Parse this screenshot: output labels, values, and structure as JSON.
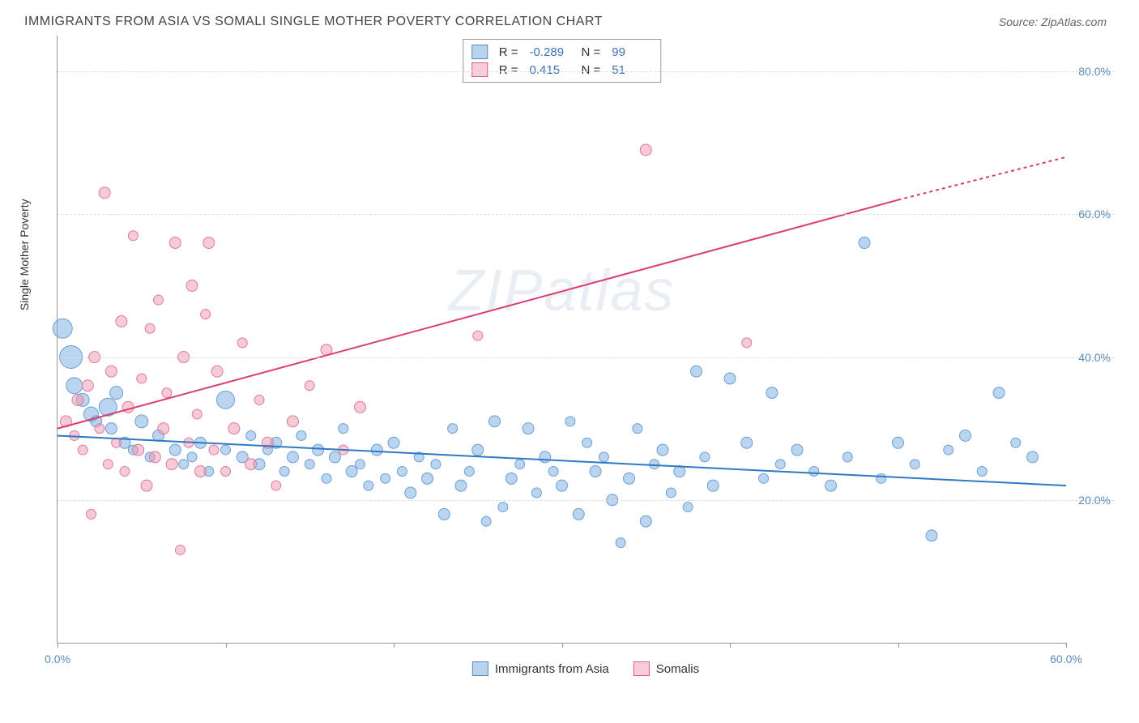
{
  "title": "IMMIGRANTS FROM ASIA VS SOMALI SINGLE MOTHER POVERTY CORRELATION CHART",
  "source": "Source: ZipAtlas.com",
  "watermark": "ZIPatlas",
  "ylabel": "Single Mother Poverty",
  "chart": {
    "type": "scatter",
    "xlim": [
      0,
      60
    ],
    "ylim": [
      0,
      85
    ],
    "xtick_positions": [
      0,
      10,
      20,
      30,
      40,
      50,
      60
    ],
    "xtick_labels": [
      "0.0%",
      "",
      "",
      "",
      "",
      "",
      "60.0%"
    ],
    "ytick_positions": [
      20,
      40,
      60,
      80
    ],
    "ytick_labels": [
      "20.0%",
      "40.0%",
      "60.0%",
      "80.0%"
    ],
    "grid_color": "#dddddd",
    "axis_color": "#999999",
    "background_color": "#ffffff",
    "series": [
      {
        "name": "Immigrants from Asia",
        "color_fill": "rgba(120,170,225,0.5)",
        "color_stroke": "#6a9fd4",
        "swatch_fill": "#b9d3ef",
        "swatch_stroke": "#5b8db8",
        "R": "-0.289",
        "N": "99",
        "trend": {
          "x1": 0,
          "y1": 29,
          "x2": 60,
          "y2": 22,
          "color": "#2f79c4",
          "width": 2
        },
        "points": [
          {
            "x": 0.3,
            "y": 44,
            "r": 12
          },
          {
            "x": 0.8,
            "y": 40,
            "r": 14
          },
          {
            "x": 1,
            "y": 36,
            "r": 10
          },
          {
            "x": 1.5,
            "y": 34,
            "r": 8
          },
          {
            "x": 2,
            "y": 32,
            "r": 9
          },
          {
            "x": 2.3,
            "y": 31,
            "r": 7
          },
          {
            "x": 3,
            "y": 33,
            "r": 11
          },
          {
            "x": 3.2,
            "y": 30,
            "r": 7
          },
          {
            "x": 3.5,
            "y": 35,
            "r": 8
          },
          {
            "x": 4,
            "y": 28,
            "r": 7
          },
          {
            "x": 4.5,
            "y": 27,
            "r": 6
          },
          {
            "x": 5,
            "y": 31,
            "r": 8
          },
          {
            "x": 5.5,
            "y": 26,
            "r": 6
          },
          {
            "x": 6,
            "y": 29,
            "r": 7
          },
          {
            "x": 7,
            "y": 27,
            "r": 7
          },
          {
            "x": 7.5,
            "y": 25,
            "r": 6
          },
          {
            "x": 8,
            "y": 26,
            "r": 6
          },
          {
            "x": 8.5,
            "y": 28,
            "r": 7
          },
          {
            "x": 9,
            "y": 24,
            "r": 6
          },
          {
            "x": 10,
            "y": 34,
            "r": 11
          },
          {
            "x": 10,
            "y": 27,
            "r": 6
          },
          {
            "x": 11,
            "y": 26,
            "r": 7
          },
          {
            "x": 11.5,
            "y": 29,
            "r": 6
          },
          {
            "x": 12,
            "y": 25,
            "r": 7
          },
          {
            "x": 12.5,
            "y": 27,
            "r": 6
          },
          {
            "x": 13,
            "y": 28,
            "r": 7
          },
          {
            "x": 13.5,
            "y": 24,
            "r": 6
          },
          {
            "x": 14,
            "y": 26,
            "r": 7
          },
          {
            "x": 14.5,
            "y": 29,
            "r": 6
          },
          {
            "x": 15,
            "y": 25,
            "r": 6
          },
          {
            "x": 15.5,
            "y": 27,
            "r": 7
          },
          {
            "x": 16,
            "y": 23,
            "r": 6
          },
          {
            "x": 16.5,
            "y": 26,
            "r": 7
          },
          {
            "x": 17,
            "y": 30,
            "r": 6
          },
          {
            "x": 17.5,
            "y": 24,
            "r": 7
          },
          {
            "x": 18,
            "y": 25,
            "r": 6
          },
          {
            "x": 18.5,
            "y": 22,
            "r": 6
          },
          {
            "x": 19,
            "y": 27,
            "r": 7
          },
          {
            "x": 19.5,
            "y": 23,
            "r": 6
          },
          {
            "x": 20,
            "y": 28,
            "r": 7
          },
          {
            "x": 20.5,
            "y": 24,
            "r": 6
          },
          {
            "x": 21,
            "y": 21,
            "r": 7
          },
          {
            "x": 21.5,
            "y": 26,
            "r": 6
          },
          {
            "x": 22,
            "y": 23,
            "r": 7
          },
          {
            "x": 22.5,
            "y": 25,
            "r": 6
          },
          {
            "x": 23,
            "y": 18,
            "r": 7
          },
          {
            "x": 23.5,
            "y": 30,
            "r": 6
          },
          {
            "x": 24,
            "y": 22,
            "r": 7
          },
          {
            "x": 24.5,
            "y": 24,
            "r": 6
          },
          {
            "x": 25,
            "y": 27,
            "r": 7
          },
          {
            "x": 25.5,
            "y": 17,
            "r": 6
          },
          {
            "x": 26,
            "y": 31,
            "r": 7
          },
          {
            "x": 26.5,
            "y": 19,
            "r": 6
          },
          {
            "x": 27,
            "y": 23,
            "r": 7
          },
          {
            "x": 27.5,
            "y": 25,
            "r": 6
          },
          {
            "x": 28,
            "y": 30,
            "r": 7
          },
          {
            "x": 28.5,
            "y": 21,
            "r": 6
          },
          {
            "x": 29,
            "y": 26,
            "r": 7
          },
          {
            "x": 29.5,
            "y": 24,
            "r": 6
          },
          {
            "x": 30,
            "y": 22,
            "r": 7
          },
          {
            "x": 30.5,
            "y": 31,
            "r": 6
          },
          {
            "x": 31,
            "y": 18,
            "r": 7
          },
          {
            "x": 31.5,
            "y": 28,
            "r": 6
          },
          {
            "x": 32,
            "y": 24,
            "r": 7
          },
          {
            "x": 32.5,
            "y": 26,
            "r": 6
          },
          {
            "x": 33,
            "y": 20,
            "r": 7
          },
          {
            "x": 33.5,
            "y": 14,
            "r": 6
          },
          {
            "x": 34,
            "y": 23,
            "r": 7
          },
          {
            "x": 34.5,
            "y": 30,
            "r": 6
          },
          {
            "x": 35,
            "y": 17,
            "r": 7
          },
          {
            "x": 35.5,
            "y": 25,
            "r": 6
          },
          {
            "x": 36,
            "y": 27,
            "r": 7
          },
          {
            "x": 36.5,
            "y": 21,
            "r": 6
          },
          {
            "x": 37,
            "y": 24,
            "r": 7
          },
          {
            "x": 37.5,
            "y": 19,
            "r": 6
          },
          {
            "x": 38,
            "y": 38,
            "r": 7
          },
          {
            "x": 38.5,
            "y": 26,
            "r": 6
          },
          {
            "x": 39,
            "y": 22,
            "r": 7
          },
          {
            "x": 40,
            "y": 37,
            "r": 7
          },
          {
            "x": 41,
            "y": 28,
            "r": 7
          },
          {
            "x": 42,
            "y": 23,
            "r": 6
          },
          {
            "x": 42.5,
            "y": 35,
            "r": 7
          },
          {
            "x": 43,
            "y": 25,
            "r": 6
          },
          {
            "x": 44,
            "y": 27,
            "r": 7
          },
          {
            "x": 45,
            "y": 24,
            "r": 6
          },
          {
            "x": 46,
            "y": 22,
            "r": 7
          },
          {
            "x": 47,
            "y": 26,
            "r": 6
          },
          {
            "x": 48,
            "y": 56,
            "r": 7
          },
          {
            "x": 49,
            "y": 23,
            "r": 6
          },
          {
            "x": 50,
            "y": 28,
            "r": 7
          },
          {
            "x": 51,
            "y": 25,
            "r": 6
          },
          {
            "x": 52,
            "y": 15,
            "r": 7
          },
          {
            "x": 53,
            "y": 27,
            "r": 6
          },
          {
            "x": 54,
            "y": 29,
            "r": 7
          },
          {
            "x": 55,
            "y": 24,
            "r": 6
          },
          {
            "x": 56,
            "y": 35,
            "r": 7
          },
          {
            "x": 57,
            "y": 28,
            "r": 6
          },
          {
            "x": 58,
            "y": 26,
            "r": 7
          }
        ]
      },
      {
        "name": "Somalis",
        "color_fill": "rgba(240,150,175,0.5)",
        "color_stroke": "#e07a9a",
        "swatch_fill": "#f6cdd9",
        "swatch_stroke": "#db5b86",
        "R": "0.415",
        "N": "51",
        "trend": {
          "x1": 0,
          "y1": 30,
          "x2": 50,
          "y2": 62,
          "color": "#db3d6e",
          "width": 2,
          "dash_from": 50,
          "dash_to_x": 60,
          "dash_to_y": 68
        },
        "points": [
          {
            "x": 0.5,
            "y": 31,
            "r": 7
          },
          {
            "x": 1,
            "y": 29,
            "r": 6
          },
          {
            "x": 1.2,
            "y": 34,
            "r": 7
          },
          {
            "x": 1.5,
            "y": 27,
            "r": 6
          },
          {
            "x": 1.8,
            "y": 36,
            "r": 7
          },
          {
            "x": 2,
            "y": 18,
            "r": 6
          },
          {
            "x": 2.2,
            "y": 40,
            "r": 7
          },
          {
            "x": 2.5,
            "y": 30,
            "r": 6
          },
          {
            "x": 2.8,
            "y": 63,
            "r": 7
          },
          {
            "x": 3,
            "y": 25,
            "r": 6
          },
          {
            "x": 3.2,
            "y": 38,
            "r": 7
          },
          {
            "x": 3.5,
            "y": 28,
            "r": 6
          },
          {
            "x": 3.8,
            "y": 45,
            "r": 7
          },
          {
            "x": 4,
            "y": 24,
            "r": 6
          },
          {
            "x": 4.2,
            "y": 33,
            "r": 7
          },
          {
            "x": 4.5,
            "y": 57,
            "r": 6
          },
          {
            "x": 4.8,
            "y": 27,
            "r": 7
          },
          {
            "x": 5,
            "y": 37,
            "r": 6
          },
          {
            "x": 5.3,
            "y": 22,
            "r": 7
          },
          {
            "x": 5.5,
            "y": 44,
            "r": 6
          },
          {
            "x": 5.8,
            "y": 26,
            "r": 7
          },
          {
            "x": 6,
            "y": 48,
            "r": 6
          },
          {
            "x": 6.3,
            "y": 30,
            "r": 7
          },
          {
            "x": 6.5,
            "y": 35,
            "r": 6
          },
          {
            "x": 6.8,
            "y": 25,
            "r": 7
          },
          {
            "x": 7,
            "y": 56,
            "r": 7
          },
          {
            "x": 7.3,
            "y": 13,
            "r": 6
          },
          {
            "x": 7.5,
            "y": 40,
            "r": 7
          },
          {
            "x": 7.8,
            "y": 28,
            "r": 6
          },
          {
            "x": 8,
            "y": 50,
            "r": 7
          },
          {
            "x": 8.3,
            "y": 32,
            "r": 6
          },
          {
            "x": 8.5,
            "y": 24,
            "r": 7
          },
          {
            "x": 8.8,
            "y": 46,
            "r": 6
          },
          {
            "x": 9,
            "y": 56,
            "r": 7
          },
          {
            "x": 9.3,
            "y": 27,
            "r": 6
          },
          {
            "x": 9.5,
            "y": 38,
            "r": 7
          },
          {
            "x": 10,
            "y": 24,
            "r": 6
          },
          {
            "x": 10.5,
            "y": 30,
            "r": 7
          },
          {
            "x": 11,
            "y": 42,
            "r": 6
          },
          {
            "x": 11.5,
            "y": 25,
            "r": 7
          },
          {
            "x": 12,
            "y": 34,
            "r": 6
          },
          {
            "x": 12.5,
            "y": 28,
            "r": 7
          },
          {
            "x": 13,
            "y": 22,
            "r": 6
          },
          {
            "x": 14,
            "y": 31,
            "r": 7
          },
          {
            "x": 15,
            "y": 36,
            "r": 6
          },
          {
            "x": 16,
            "y": 41,
            "r": 7
          },
          {
            "x": 17,
            "y": 27,
            "r": 6
          },
          {
            "x": 18,
            "y": 33,
            "r": 7
          },
          {
            "x": 25,
            "y": 43,
            "r": 6
          },
          {
            "x": 35,
            "y": 69,
            "r": 7
          },
          {
            "x": 41,
            "y": 42,
            "r": 6
          }
        ]
      }
    ]
  },
  "stats_labels": {
    "R": "R =",
    "N": "N ="
  },
  "colors": {
    "title_text": "#444444",
    "source_text": "#666666",
    "tick_text": "#5b8db8",
    "watermark": "rgba(100,140,180,0.15)"
  }
}
